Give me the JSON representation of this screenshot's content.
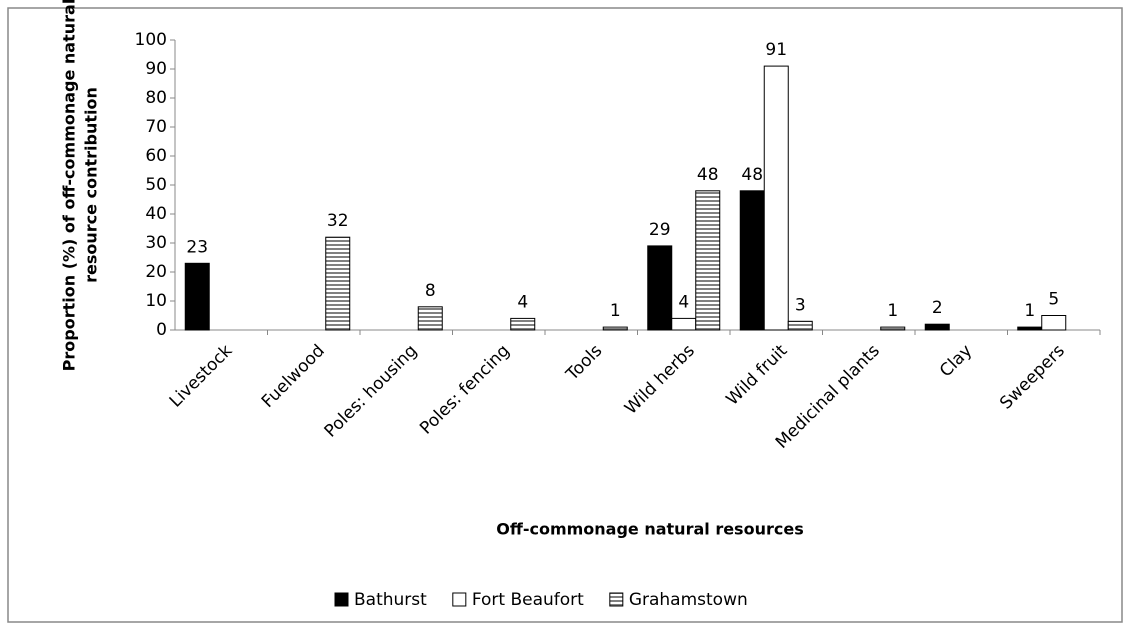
{
  "chart_data": {
    "type": "bar",
    "categories": [
      "Livestock",
      "Fuelwood",
      "Poles: housing",
      "Poles: fencing",
      "Tools",
      "Wild herbs",
      "Wild fruit",
      "Medicinal plants",
      "Clay",
      "Sweepers"
    ],
    "series": [
      {
        "name": "Bathurst",
        "color": "#000000",
        "values": [
          23,
          null,
          null,
          null,
          null,
          29,
          48,
          null,
          2,
          1
        ]
      },
      {
        "name": "Fort Beaufort",
        "color": "#ffffff",
        "values": [
          null,
          null,
          null,
          null,
          null,
          4,
          91,
          null,
          null,
          5
        ]
      },
      {
        "name": "Grahamstown",
        "color": "#808080",
        "pattern": "horizontal-stripes",
        "values": [
          null,
          32,
          8,
          4,
          1,
          48,
          3,
          1,
          null,
          null
        ]
      }
    ],
    "ylim": [
      0,
      100
    ],
    "yticks": [
      0,
      10,
      20,
      30,
      40,
      50,
      60,
      70,
      80,
      90,
      100
    ],
    "y_label": [
      "Proportion (%) of off-commonage natural",
      "resource contribution"
    ],
    "x_label": "Off-commonage natural resources",
    "legend": "bottom"
  }
}
